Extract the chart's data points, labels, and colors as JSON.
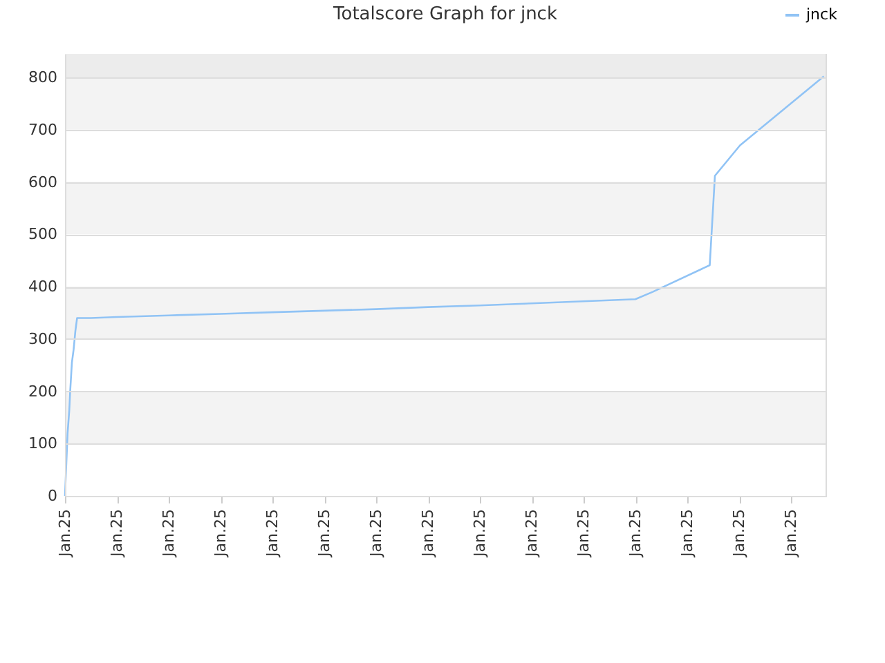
{
  "chart_data": {
    "type": "line",
    "title": "Totalscore Graph for jnck",
    "x": [
      "--01-25T00:00",
      "--01-25T00:01",
      "--01-25T00:03",
      "--01-25T00:05",
      "--01-25T00:06",
      "--01-25T00:08",
      "--01-25T00:10",
      "--01-25T00:12",
      "--01-25T00:14",
      "--01-25T00:30",
      "--01-25T01:00",
      "--01-25T02:00",
      "--01-25T03:00",
      "--01-25T04:00",
      "--01-25T05:00",
      "--01-25T06:00",
      "--01-25T07:00",
      "--01-25T08:00",
      "--01-25T09:00",
      "--01-25T10:00",
      "--01-25T11:00",
      "--01-25T11:20",
      "--01-25T12:26",
      "--01-25T12:32",
      "--01-25T13:01",
      "--01-25T14:38"
    ],
    "series": [
      {
        "name": "jnck",
        "color": "#90c3f5",
        "values": [
          0,
          40,
          120,
          165,
          200,
          255,
          280,
          315,
          340,
          340,
          342,
          345,
          348,
          351,
          354,
          357,
          361,
          364,
          368,
          372,
          376,
          390,
          441,
          612,
          670,
          802
        ]
      }
    ],
    "xlim": [
      "--01-25T00:00",
      "--01-25T14:40"
    ],
    "xticks": [
      {
        "value": "--01-25T00:00",
        "label": "Jan.25"
      },
      {
        "value": "--01-25T01:00",
        "label": "Jan.25"
      },
      {
        "value": "--01-25T02:00",
        "label": "Jan.25"
      },
      {
        "value": "--01-25T03:00",
        "label": "Jan.25"
      },
      {
        "value": "--01-25T04:00",
        "label": "Jan.25"
      },
      {
        "value": "--01-25T05:00",
        "label": "Jan.25"
      },
      {
        "value": "--01-25T06:00",
        "label": "Jan.25"
      },
      {
        "value": "--01-25T07:00",
        "label": "Jan.25"
      },
      {
        "value": "--01-25T08:00",
        "label": "Jan.25"
      },
      {
        "value": "--01-25T09:00",
        "label": "Jan.25"
      },
      {
        "value": "--01-25T10:00",
        "label": "Jan.25"
      },
      {
        "value": "--01-25T11:00",
        "label": "Jan.25"
      },
      {
        "value": "--01-25T12:00",
        "label": "Jan.25"
      },
      {
        "value": "--01-25T13:00",
        "label": "Jan.25"
      },
      {
        "value": "--01-25T14:00",
        "label": "Jan.25"
      }
    ],
    "ylim": [
      0,
      845
    ],
    "yticks": [
      0,
      100,
      200,
      300,
      400,
      500,
      600,
      700,
      800
    ],
    "bands": [
      {
        "axis": "y",
        "from": 100,
        "to": 200,
        "color": "#f3f3f3"
      },
      {
        "axis": "y",
        "from": 300,
        "to": 400,
        "color": "#f3f3f3"
      },
      {
        "axis": "y",
        "from": 500,
        "to": 600,
        "color": "#f3f3f3"
      },
      {
        "axis": "y",
        "from": 700,
        "to": 800,
        "color": "#f3f3f3"
      },
      {
        "axis": "y",
        "from": 800,
        "to": 845,
        "color": "#ececec"
      }
    ],
    "grid": "y",
    "legend": "top right",
    "marker": "none",
    "line_style": "solid"
  }
}
